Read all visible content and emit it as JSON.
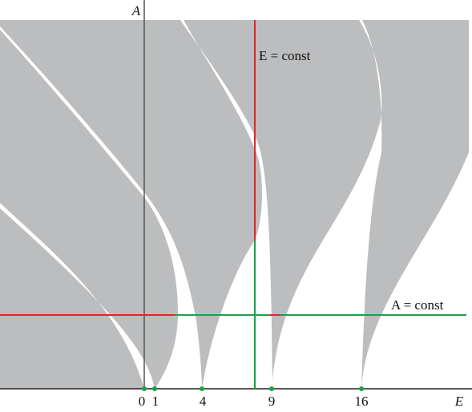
{
  "axis_labels": {
    "x": "E",
    "y": "A"
  },
  "annotations": {
    "vertical_line": "E = const",
    "horizontal_line": "A = const"
  },
  "ticks": [
    0,
    1,
    4,
    9,
    16
  ]
}
